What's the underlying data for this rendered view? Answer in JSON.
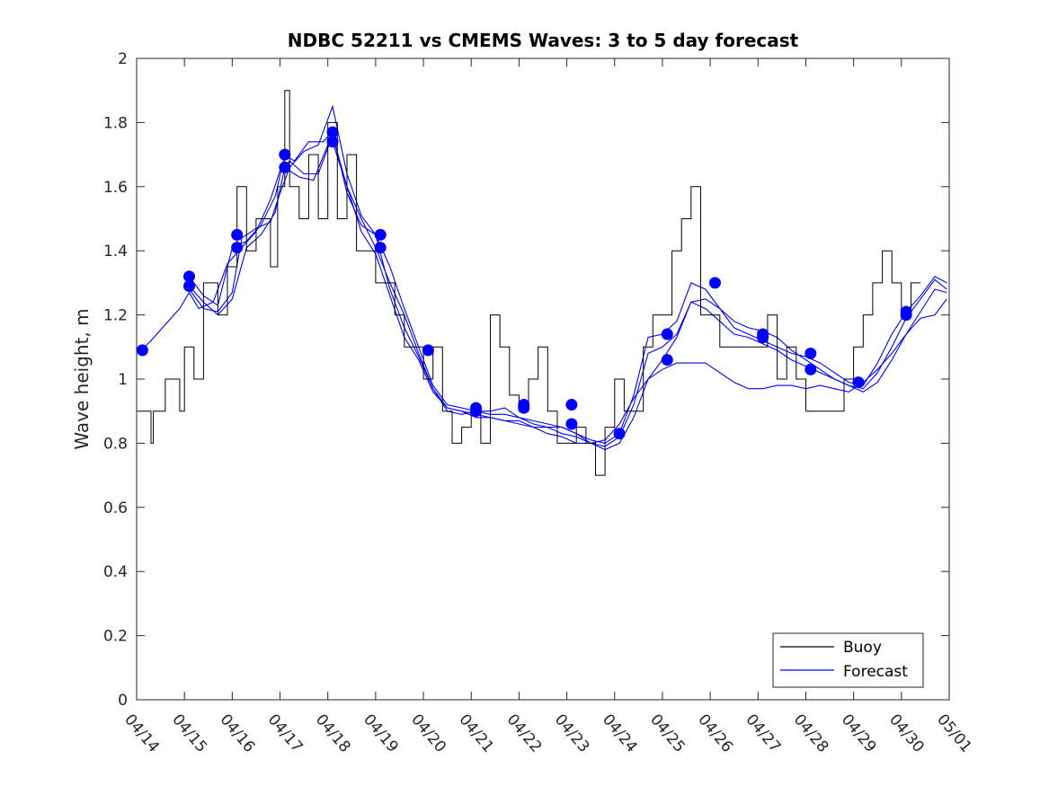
{
  "chart_data": {
    "type": "line",
    "title": "NDBC 52211 vs CMEMS Waves: 3 to 5 day forecast",
    "xlabel": "",
    "ylabel": "Wave height, m",
    "xlim": [
      0,
      17
    ],
    "ylim": [
      0,
      2
    ],
    "x_tick_labels": [
      "04/14",
      "04/15",
      "04/16",
      "04/17",
      "04/18",
      "04/19",
      "04/20",
      "04/21",
      "04/22",
      "04/23",
      "04/24",
      "04/25",
      "04/26",
      "04/27",
      "04/28",
      "04/29",
      "04/30",
      "05/01"
    ],
    "y_ticks": [
      0,
      0.2,
      0.4,
      0.6,
      0.8,
      1,
      1.2,
      1.4,
      1.6,
      1.8,
      2
    ],
    "y_tick_labels": [
      "0",
      "0.2",
      "0.4",
      "0.6",
      "0.8",
      "1",
      "1.2",
      "1.4",
      "1.6",
      "1.8",
      "2"
    ],
    "grid": false,
    "legend_position": "bottom-right",
    "legend": [
      {
        "label": "Buoy",
        "color": "#000000"
      },
      {
        "label": "Forecast",
        "color": "#0000ff"
      }
    ],
    "buoy": {
      "name": "Buoy",
      "color": "#000000",
      "x": [
        0.0,
        0.3,
        0.35,
        0.6,
        0.9,
        1.0,
        1.2,
        1.4,
        1.7,
        1.9,
        2.1,
        2.3,
        2.5,
        2.8,
        2.95,
        3.1,
        3.2,
        3.4,
        3.6,
        3.8,
        4.0,
        4.2,
        4.4,
        4.6,
        4.8,
        5.0,
        5.2,
        5.4,
        5.6,
        5.8,
        6.0,
        6.2,
        6.4,
        6.6,
        6.8,
        7.0,
        7.2,
        7.4,
        7.6,
        7.8,
        8.0,
        8.2,
        8.4,
        8.6,
        8.8,
        9.0,
        9.2,
        9.4,
        9.6,
        9.8,
        10.0,
        10.2,
        10.4,
        10.6,
        10.8,
        11.0,
        11.2,
        11.4,
        11.6,
        11.8,
        12.0,
        12.2,
        12.4,
        12.6,
        12.8,
        13.0,
        13.2,
        13.4,
        13.6,
        13.8,
        14.0,
        14.2,
        14.4,
        14.6,
        14.8,
        15.0,
        15.2,
        15.4,
        15.6,
        15.8,
        16.0,
        16.2,
        16.4
      ],
      "y": [
        0.9,
        0.8,
        0.9,
        1.0,
        0.9,
        1.1,
        1.0,
        1.3,
        1.2,
        1.35,
        1.6,
        1.4,
        1.5,
        1.35,
        1.6,
        1.9,
        1.6,
        1.5,
        1.7,
        1.5,
        1.8,
        1.5,
        1.7,
        1.4,
        1.4,
        1.3,
        1.3,
        1.2,
        1.1,
        1.1,
        1.0,
        1.1,
        0.9,
        0.8,
        0.85,
        0.9,
        0.8,
        1.2,
        1.1,
        0.95,
        0.9,
        1.0,
        1.1,
        0.9,
        0.8,
        0.8,
        0.85,
        0.8,
        0.7,
        0.85,
        1.0,
        0.9,
        0.9,
        1.1,
        1.2,
        1.2,
        1.4,
        1.5,
        1.6,
        1.2,
        1.2,
        1.1,
        1.1,
        1.1,
        1.1,
        1.1,
        1.2,
        1.0,
        1.1,
        1.0,
        0.9,
        0.9,
        0.9,
        0.9,
        1.0,
        1.1,
        1.2,
        1.3,
        1.4,
        1.3,
        1.2,
        1.3,
        1.3
      ]
    },
    "series": [
      {
        "x": [
          0.1,
          0.3,
          0.6,
          0.9,
          1.1,
          1.3,
          1.6,
          1.9,
          2.2,
          2.5,
          2.8,
          3.0,
          3.2,
          3.5,
          3.8,
          4.1,
          4.4,
          4.7,
          5.0,
          5.3,
          5.6,
          5.9,
          6.2,
          6.5,
          6.8,
          7.1,
          7.4,
          7.7,
          8.0,
          8.3,
          8.6,
          8.9,
          9.2,
          9.5,
          9.8,
          10.1,
          10.4,
          10.7,
          11.0,
          11.3,
          11.6,
          11.9,
          12.2,
          12.5,
          12.8,
          13.1,
          13.4,
          13.7,
          14.0,
          14.3,
          14.6,
          14.9,
          15.2,
          15.5,
          15.8,
          16.1,
          16.4,
          16.7,
          16.95
        ],
        "y": [
          1.09,
          1.12,
          1.17,
          1.22,
          1.27,
          1.22,
          1.24,
          1.36,
          1.41,
          1.46,
          1.56,
          1.65,
          1.68,
          1.64,
          1.64,
          1.76,
          1.6,
          1.46,
          1.39,
          1.26,
          1.13,
          1.06,
          0.96,
          0.91,
          0.9,
          0.88,
          0.88,
          0.87,
          0.87,
          0.85,
          0.83,
          0.82,
          0.8,
          0.8,
          0.81,
          0.86,
          0.94,
          1.0,
          1.03,
          1.05,
          1.05,
          1.05,
          1.02,
          0.99,
          0.97,
          0.97,
          0.98,
          0.98,
          0.97,
          0.98,
          0.97,
          0.96,
          0.99,
          1.03,
          1.08,
          1.14,
          1.19,
          1.2,
          1.25
        ]
      },
      {
        "x": [
          1.1,
          1.4,
          1.7,
          2.0,
          2.3,
          2.6,
          2.9,
          3.1,
          3.3,
          3.6,
          3.9,
          4.1,
          4.4,
          4.7,
          5.0,
          5.3,
          5.6,
          5.9,
          6.2,
          6.5,
          6.8,
          7.1,
          7.4,
          7.7,
          8.0,
          8.3,
          8.6,
          8.9,
          9.2,
          9.5,
          9.8,
          10.1,
          10.4,
          10.7,
          11.0,
          11.3,
          11.6,
          11.9,
          12.2,
          12.5,
          12.8,
          13.1,
          13.4,
          13.7,
          14.0,
          14.3,
          14.6,
          14.9,
          15.2,
          15.5,
          15.8,
          16.1,
          16.4,
          16.7,
          16.95
        ],
        "y": [
          1.32,
          1.26,
          1.23,
          1.41,
          1.43,
          1.48,
          1.57,
          1.7,
          1.68,
          1.74,
          1.74,
          1.77,
          1.58,
          1.48,
          1.45,
          1.35,
          1.22,
          1.1,
          0.98,
          0.92,
          0.91,
          0.9,
          0.89,
          0.89,
          0.88,
          0.87,
          0.86,
          0.85,
          0.83,
          0.81,
          0.8,
          0.83,
          0.95,
          1.13,
          1.14,
          1.18,
          1.3,
          1.28,
          1.22,
          1.16,
          1.14,
          1.12,
          1.1,
          1.08,
          1.07,
          1.05,
          1.02,
          0.99,
          0.98,
          1.05,
          1.14,
          1.21,
          1.26,
          1.32,
          1.3
        ]
      },
      {
        "x": [
          1.1,
          1.4,
          1.7,
          2.0,
          2.3,
          2.6,
          2.9,
          3.1,
          3.4,
          3.7,
          4.0,
          4.1,
          4.4,
          4.7,
          5.0,
          5.3,
          5.6,
          5.9,
          6.2,
          6.5,
          6.8,
          7.1,
          7.4,
          7.7,
          8.0,
          8.3,
          8.6,
          8.9,
          9.2,
          9.5,
          9.8,
          10.1,
          10.4,
          10.7,
          11.0,
          11.3,
          11.6,
          11.9,
          12.2,
          12.5,
          12.8,
          13.1,
          13.4,
          13.7,
          14.0,
          14.3,
          14.6,
          14.9,
          15.2,
          15.5,
          15.8,
          16.1,
          16.4,
          16.7,
          16.95
        ],
        "y": [
          1.29,
          1.24,
          1.2,
          1.25,
          1.41,
          1.45,
          1.52,
          1.66,
          1.63,
          1.62,
          1.73,
          1.74,
          1.6,
          1.5,
          1.41,
          1.3,
          1.2,
          1.08,
          0.97,
          0.91,
          0.9,
          0.89,
          0.88,
          0.87,
          0.86,
          0.85,
          0.85,
          0.85,
          0.83,
          0.8,
          0.79,
          0.82,
          0.92,
          1.08,
          1.1,
          1.14,
          1.24,
          1.22,
          1.18,
          1.14,
          1.13,
          1.11,
          1.09,
          1.06,
          1.04,
          1.02,
          1.0,
          0.98,
          0.97,
          1.02,
          1.1,
          1.19,
          1.25,
          1.31,
          1.28
        ]
      },
      {
        "x": [
          1.1,
          1.4,
          1.7,
          2.0,
          2.2,
          2.5,
          2.8,
          3.0,
          3.2,
          3.5,
          3.8,
          4.1,
          4.4,
          4.7,
          5.0,
          5.3,
          5.6,
          5.9,
          6.2,
          6.5,
          6.8,
          7.1,
          7.4,
          7.7,
          8.0,
          8.3,
          8.6,
          8.9,
          9.2,
          9.5,
          9.8,
          10.1,
          10.4,
          10.7,
          11.0,
          11.3,
          11.6,
          11.9,
          12.2,
          12.5,
          12.8,
          13.1,
          13.4,
          13.7,
          14.0,
          14.3,
          14.6,
          14.9,
          15.2,
          15.5,
          15.8,
          16.1,
          16.4,
          16.7,
          16.95
        ],
        "y": [
          1.28,
          1.22,
          1.21,
          1.27,
          1.44,
          1.47,
          1.49,
          1.58,
          1.66,
          1.71,
          1.73,
          1.85,
          1.64,
          1.51,
          1.45,
          1.28,
          1.16,
          1.07,
          0.97,
          0.9,
          0.89,
          0.9,
          0.9,
          0.91,
          0.88,
          0.86,
          0.85,
          0.83,
          0.82,
          0.8,
          0.78,
          0.8,
          0.88,
          1.0,
          1.06,
          1.13,
          1.24,
          1.25,
          1.22,
          1.18,
          1.16,
          1.15,
          1.13,
          1.09,
          1.06,
          1.03,
          1.0,
          0.98,
          0.96,
          0.99,
          1.06,
          1.14,
          1.21,
          1.28,
          1.27
        ]
      }
    ],
    "markers": {
      "x": [
        0.12,
        1.1,
        1.1,
        2.1,
        2.1,
        3.1,
        3.1,
        4.1,
        4.1,
        5.1,
        5.1,
        6.1,
        7.1,
        7.1,
        8.1,
        8.1,
        9.1,
        9.1,
        10.1,
        11.1,
        11.1,
        12.1,
        13.1,
        13.1,
        14.1,
        14.1,
        15.1,
        16.1,
        16.1
      ],
      "y": [
        1.09,
        1.32,
        1.29,
        1.45,
        1.41,
        1.7,
        1.66,
        1.77,
        1.74,
        1.45,
        1.41,
        1.09,
        0.91,
        0.9,
        0.92,
        0.91,
        0.92,
        0.86,
        0.83,
        1.14,
        1.06,
        1.3,
        1.14,
        1.13,
        1.08,
        1.03,
        0.99,
        1.21,
        1.2
      ],
      "color": "#0000ff"
    }
  }
}
